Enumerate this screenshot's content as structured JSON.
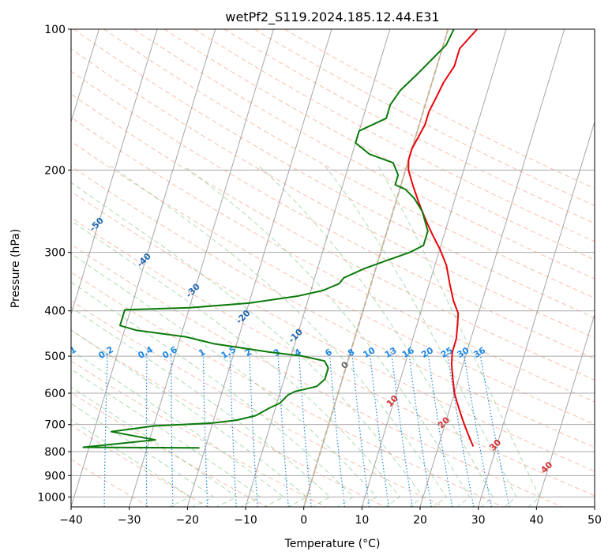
{
  "chart_data": {
    "type": "line",
    "title": "wetPf2_S119.2024.185.12.44.E31",
    "xlabel": "Temperature (°C)",
    "ylabel": "Pressure (hPa)",
    "xlim": [
      -40,
      50
    ],
    "ylim": [
      1050,
      100
    ],
    "y_scale": "log",
    "x_ticks": [
      "−40",
      "−30",
      "−20",
      "−10",
      "0",
      "10",
      "20",
      "30",
      "40",
      "50"
    ],
    "y_ticks": [
      "100",
      "200",
      "300",
      "400",
      "500",
      "600",
      "700",
      "800",
      "900",
      "1000"
    ],
    "grid": true,
    "series": [
      {
        "key": "temperature",
        "color": "#e8060c",
        "points": [
          [
            26,
            780
          ],
          [
            25,
            750
          ],
          [
            24,
            720
          ],
          [
            23,
            690
          ],
          [
            22,
            660
          ],
          [
            21,
            630
          ],
          [
            20,
            600
          ],
          [
            19,
            560
          ],
          [
            18,
            520
          ],
          [
            17.5,
            490
          ],
          [
            17.5,
            460
          ],
          [
            17,
            430
          ],
          [
            16.5,
            405
          ],
          [
            15,
            380
          ],
          [
            13.5,
            350
          ],
          [
            12,
            320
          ],
          [
            10,
            295
          ],
          [
            8,
            275
          ],
          [
            6,
            255
          ],
          [
            4,
            235
          ],
          [
            2,
            215
          ],
          [
            0.5,
            200
          ],
          [
            0,
            190
          ],
          [
            0,
            180
          ],
          [
            0.5,
            170
          ],
          [
            1,
            160
          ],
          [
            1,
            150
          ],
          [
            1.5,
            140
          ],
          [
            2,
            130
          ],
          [
            3,
            120
          ],
          [
            3,
            115
          ],
          [
            3,
            110
          ],
          [
            5,
            100
          ]
        ]
      },
      {
        "key": "dewpoint",
        "color": "#0a7a0a",
        "points": [
          [
            -21,
            785
          ],
          [
            -41,
            783
          ],
          [
            -29,
            755
          ],
          [
            -37,
            725
          ],
          [
            -30,
            705
          ],
          [
            -20,
            695
          ],
          [
            -16,
            685
          ],
          [
            -13,
            670
          ],
          [
            -11,
            645
          ],
          [
            -9.5,
            630
          ],
          [
            -8.5,
            605
          ],
          [
            -7.5,
            595
          ],
          [
            -4,
            580
          ],
          [
            -3,
            560
          ],
          [
            -3,
            530
          ],
          [
            -4,
            512
          ],
          [
            -8,
            500
          ],
          [
            -14,
            490
          ],
          [
            -24,
            470
          ],
          [
            -29,
            455
          ],
          [
            -38,
            440
          ],
          [
            -41,
            430
          ],
          [
            -41,
            398
          ],
          [
            -30,
            394
          ],
          [
            -20,
            385
          ],
          [
            -12,
            372
          ],
          [
            -8,
            362
          ],
          [
            -5.5,
            350
          ],
          [
            -5,
            340
          ],
          [
            -2,
            325
          ],
          [
            1.5,
            312
          ],
          [
            5,
            300
          ],
          [
            7,
            290
          ],
          [
            7,
            270
          ],
          [
            5,
            245
          ],
          [
            3,
            230
          ],
          [
            1,
            220
          ],
          [
            -1,
            215
          ],
          [
            -1,
            210
          ],
          [
            -1,
            205
          ],
          [
            -2.5,
            193
          ],
          [
            -7,
            185
          ],
          [
            -10,
            175
          ],
          [
            -10,
            165
          ],
          [
            -6,
            155
          ],
          [
            -6,
            145
          ],
          [
            -5,
            135
          ],
          [
            -3,
            125
          ],
          [
            -1,
            115
          ],
          [
            0.5,
            108
          ],
          [
            1,
            100
          ]
        ]
      }
    ],
    "mixing_ratio_labels": [
      "0.1",
      "0.2",
      "0.4",
      "0.6",
      "1",
      "1.5",
      "2",
      "3",
      "4",
      "6",
      "8",
      "10",
      "13",
      "16",
      "20",
      "25",
      "30",
      "36"
    ],
    "mixing_ratio_values": [
      0.1,
      0.2,
      0.4,
      0.6,
      1,
      1.5,
      2,
      3,
      4,
      6,
      8,
      10,
      13,
      16,
      20,
      25,
      30,
      36
    ],
    "dry_adiabat_labels": [
      {
        "text": "40",
        "p": 860
      },
      {
        "text": "30",
        "p": 770
      },
      {
        "text": "20",
        "p": 690
      },
      {
        "text": "10",
        "p": 620
      },
      {
        "text": "0",
        "p": 520
      },
      {
        "text": "-10",
        "p": 450
      },
      {
        "text": "-20",
        "p": 410
      },
      {
        "text": "-30",
        "p": 360
      },
      {
        "text": "-40",
        "p": 310
      },
      {
        "text": "-50",
        "p": 260
      },
      {
        "text": "-60",
        "p": 220
      },
      {
        "text": "-70",
        "p": 188
      },
      {
        "text": "-80",
        "p": 160
      },
      {
        "text": "-90",
        "p": 130
      },
      {
        "text": "-100",
        "p": 108
      }
    ],
    "colors": {
      "isotherm": "#888888",
      "pressure_grid": "#aaaaaa",
      "dry_adiabat": "#f08060",
      "moist_adiabat": "#4caf50",
      "mixing_ratio": "#1e88e5",
      "freezing_isotherm": "#c8b496",
      "label_blue": "#1e88e5",
      "label_red": "#d32f2f",
      "label_gray": "#666666"
    }
  }
}
